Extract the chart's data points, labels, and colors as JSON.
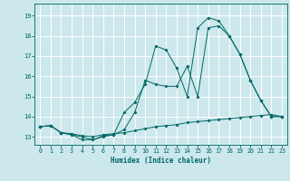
{
  "xlabel": "Humidex (Indice chaleur)",
  "bg_color": "#cce8ec",
  "line_color": "#006666",
  "grid_color": "#ffffff",
  "ylim": [
    12.6,
    19.6
  ],
  "xlim": [
    -0.5,
    23.5
  ],
  "yticks": [
    13,
    14,
    15,
    16,
    17,
    18,
    19
  ],
  "xticks": [
    0,
    1,
    2,
    3,
    4,
    5,
    6,
    7,
    8,
    9,
    10,
    11,
    12,
    13,
    14,
    15,
    16,
    17,
    18,
    19,
    20,
    21,
    22,
    23
  ],
  "series1_x": [
    0,
    1,
    2,
    3,
    4,
    5,
    6,
    7,
    8,
    9,
    10,
    11,
    12,
    13,
    14,
    15,
    16,
    17,
    18,
    19,
    20,
    21,
    22,
    23
  ],
  "series1_y": [
    13.5,
    13.55,
    13.2,
    13.15,
    13.05,
    13.0,
    13.1,
    13.15,
    13.2,
    13.3,
    13.4,
    13.5,
    13.55,
    13.6,
    13.7,
    13.75,
    13.8,
    13.85,
    13.9,
    13.95,
    14.0,
    14.05,
    14.1,
    14.0
  ],
  "series2_x": [
    0,
    1,
    2,
    3,
    4,
    5,
    6,
    7,
    8,
    9,
    10,
    11,
    12,
    13,
    14,
    15,
    16,
    17,
    18,
    19,
    20,
    21,
    22,
    23
  ],
  "series2_y": [
    13.5,
    13.55,
    13.2,
    13.1,
    13.0,
    12.85,
    13.0,
    13.1,
    13.35,
    14.2,
    15.8,
    15.6,
    15.5,
    15.5,
    16.5,
    15.0,
    18.4,
    18.5,
    18.0,
    17.1,
    15.8,
    14.8,
    14.0,
    14.0
  ],
  "series3_x": [
    0,
    1,
    2,
    3,
    4,
    5,
    6,
    7,
    8,
    9,
    10,
    11,
    12,
    13,
    14,
    15,
    16,
    17,
    18,
    19,
    20,
    21,
    22,
    23
  ],
  "series3_y": [
    13.5,
    13.55,
    13.2,
    13.1,
    12.85,
    12.85,
    13.05,
    13.1,
    14.2,
    14.7,
    15.6,
    17.5,
    17.3,
    16.4,
    15.0,
    18.4,
    18.9,
    18.75,
    18.0,
    17.1,
    15.8,
    14.8,
    14.0,
    14.0
  ]
}
